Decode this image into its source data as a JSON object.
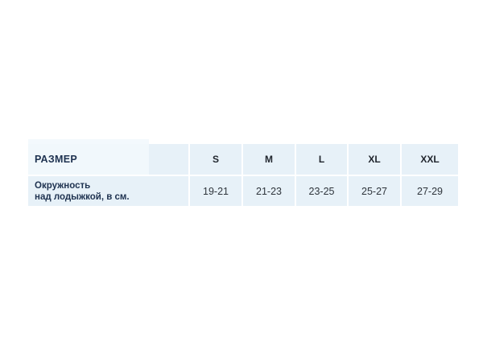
{
  "chart_data": {
    "type": "table",
    "columns": [
      "РАЗМЕР",
      "S",
      "M",
      "L",
      "XL",
      "XXL"
    ],
    "rows": [
      [
        "Окружность над лодыжкой, в см.",
        "19-21",
        "21-23",
        "23-25",
        "25-27",
        "27-29"
      ]
    ],
    "title": "",
    "layout": "two-row size chart, first column is row label, light-blue cells with white 2px separators on white page"
  },
  "table": {
    "header_label": "РАЗМЕР",
    "sizes": [
      "S",
      "M",
      "L",
      "XL",
      "XXL"
    ],
    "label_lines": [
      "Окружность",
      "над лодыжкой, в см."
    ],
    "values": [
      "19-21",
      "21-23",
      "23-25",
      "25-27",
      "27-29"
    ]
  },
  "colors": {
    "page_background": "#ffffff",
    "cell_background": "#e7f1f8",
    "first_cell_background": "#f1f8fc",
    "separator": "#ffffff",
    "header_text": "#1e3250",
    "size_text": "#21262e",
    "value_text": "#2f353c"
  }
}
